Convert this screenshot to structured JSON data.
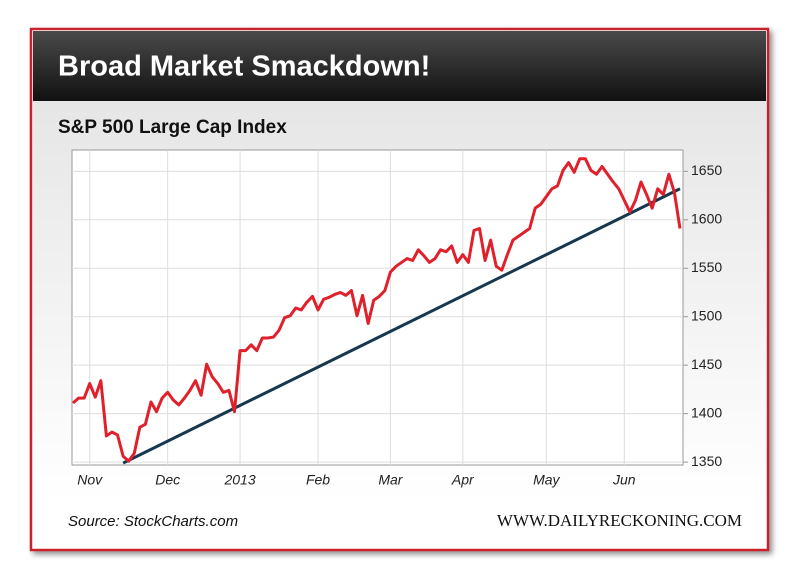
{
  "chart_data": {
    "type": "line",
    "title": "Broad Market Smackdown!",
    "subtitle": "S&P 500 Large Cap Index",
    "source": "Source: StockCharts.com",
    "credit": "WWW.DAILYRECKONING.COM",
    "categories": [
      null,
      null,
      null,
      "Nov",
      null,
      null,
      null,
      null,
      null,
      null,
      null,
      null,
      null,
      null,
      null,
      null,
      null,
      "Dec",
      null,
      null,
      null,
      null,
      null,
      null,
      null,
      null,
      null,
      null,
      null,
      null,
      "2013",
      null,
      null,
      null,
      null,
      null,
      null,
      null,
      null,
      null,
      null,
      null,
      null,
      null,
      "Feb",
      null,
      null,
      null,
      null,
      null,
      null,
      null,
      null,
      null,
      null,
      null,
      null,
      "Mar",
      null,
      null,
      null,
      null,
      null,
      null,
      null,
      null,
      null,
      null,
      null,
      null,
      "Apr",
      null,
      null,
      null,
      null,
      null,
      null,
      null,
      null,
      null,
      null,
      null,
      null,
      null,
      null,
      "May",
      null,
      null,
      null,
      null,
      null,
      null,
      null,
      null,
      null,
      null,
      null,
      null,
      null,
      "Jun",
      null,
      null,
      null,
      null,
      null,
      null,
      null,
      null,
      null,
      null
    ],
    "series": [
      {
        "color": "#e0202a",
        "values": [
          1411,
          1416,
          1416,
          1431,
          1417,
          1434,
          1377,
          1381,
          1378,
          1356,
          1351,
          1359,
          1386,
          1389,
          1412,
          1402,
          1416,
          1422,
          1414,
          1409,
          1416,
          1424,
          1434,
          1419,
          1451,
          1438,
          1431,
          1422,
          1424,
          1402,
          1465,
          1465,
          1471,
          1465,
          1478,
          1478,
          1479,
          1486,
          1499,
          1501,
          1509,
          1507,
          1515,
          1521,
          1507,
          1518,
          1520,
          1523,
          1525,
          1522,
          1527,
          1501,
          1522,
          1493,
          1517,
          1521,
          1527,
          1546,
          1552,
          1556,
          1560,
          1558,
          1569,
          1563,
          1556,
          1560,
          1569,
          1567,
          1573,
          1556,
          1564,
          1556,
          1589,
          1591,
          1558,
          1579,
          1552,
          1548,
          1564,
          1579,
          1583,
          1587,
          1591,
          1612,
          1616,
          1624,
          1632,
          1635,
          1651,
          1659,
          1649,
          1663,
          1663,
          1651,
          1647,
          1655,
          1647,
          1639,
          1632,
          1620,
          1608,
          1620,
          1639,
          1626,
          1612,
          1632,
          1626,
          1647,
          1628,
          1591
        ]
      },
      {
        "color": "#16384f",
        "values": [
          null,
          null,
          null,
          null,
          null,
          null,
          null,
          null,
          null,
          1349,
          null,
          null,
          null,
          null,
          null,
          null,
          null,
          null,
          null,
          null,
          null,
          null,
          null,
          null,
          null,
          null,
          null,
          null,
          null,
          null,
          null,
          null,
          null,
          null,
          null,
          null,
          null,
          null,
          null,
          null,
          null,
          null,
          null,
          null,
          null,
          null,
          null,
          null,
          null,
          null,
          null,
          null,
          null,
          null,
          null,
          null,
          null,
          null,
          null,
          null,
          null,
          null,
          null,
          null,
          null,
          null,
          null,
          null,
          null,
          null,
          null,
          null,
          null,
          null,
          null,
          null,
          null,
          null,
          null,
          null,
          null,
          null,
          null,
          null,
          null,
          null,
          null,
          null,
          null,
          null,
          null,
          null,
          null,
          null,
          null,
          null,
          null,
          null,
          null,
          null,
          null,
          null,
          null,
          null,
          null,
          null,
          null,
          null,
          null,
          1632
        ]
      }
    ],
    "ylim": [
      1347,
      1672
    ],
    "yticks": [
      1350,
      1400,
      1450,
      1500,
      1550,
      1600,
      1650
    ],
    "grid": true
  }
}
